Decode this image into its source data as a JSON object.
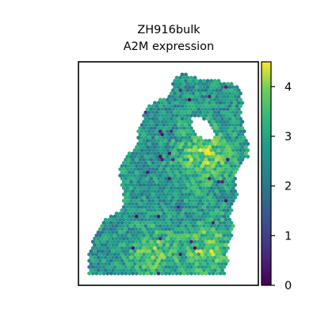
{
  "chart_data": {
    "type": "scatter",
    "title": "ZH916bulk",
    "subtitle": "A2M expression",
    "xlabel": "",
    "ylabel": "",
    "colormap": "viridis",
    "colorbar": {
      "vmin": 0,
      "vmax": 4.5,
      "ticks": [
        "0",
        "1",
        "2",
        "3",
        "4"
      ]
    },
    "grid": false,
    "legend": "colorbar-right",
    "marker": "hexagon",
    "regions": [
      {
        "name": "upper-right hotspot",
        "value": 3.8
      },
      {
        "name": "lower-left hotspot",
        "value": 3.6
      },
      {
        "name": "lower-right hotspot",
        "value": 3.7
      },
      {
        "name": "tissue background",
        "value": 2.6
      }
    ]
  }
}
